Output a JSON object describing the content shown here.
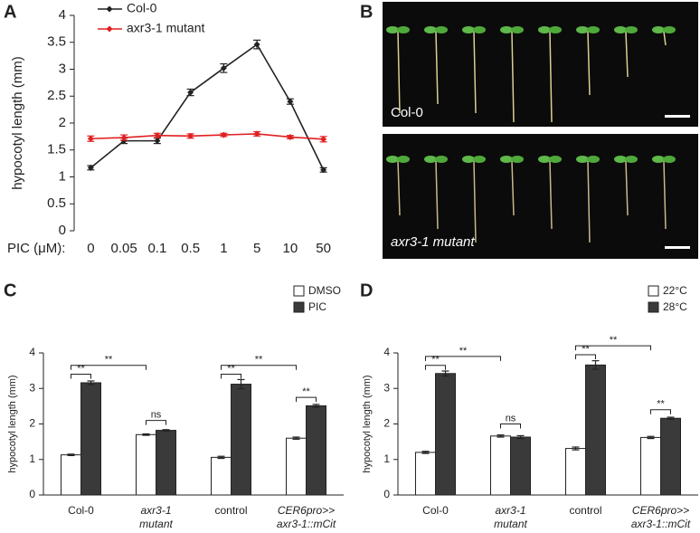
{
  "chart_data": [
    {
      "type": "line",
      "panel": "A",
      "y_label": "hypocotyl length (mm)",
      "x_label": "PIC (μM):",
      "categories": [
        "0",
        "0.05",
        "0.1",
        "0.5",
        "1",
        "5",
        "10",
        "50"
      ],
      "ylim": [
        0,
        4
      ],
      "yticks": [
        0,
        0.5,
        1,
        1.5,
        2,
        2.5,
        3,
        3.5,
        4
      ],
      "series": [
        {
          "name": "Col-0",
          "color": "#222222",
          "values": [
            1.17,
            1.67,
            1.67,
            2.57,
            3.02,
            3.46,
            2.4,
            1.13
          ],
          "errors": [
            0.04,
            0.05,
            0.05,
            0.06,
            0.08,
            0.08,
            0.05,
            0.04
          ]
        },
        {
          "name": "axr3-1 mutant",
          "color": "#e02020",
          "values": [
            1.71,
            1.73,
            1.77,
            1.76,
            1.78,
            1.8,
            1.74,
            1.7
          ],
          "errors": [
            0.05,
            0.05,
            0.04,
            0.04,
            0.03,
            0.04,
            0.03,
            0.05
          ]
        }
      ]
    },
    {
      "type": "bar",
      "panel": "C",
      "y_label": "hypocotyl length (mm)",
      "categories": [
        [
          "Col-0"
        ],
        [
          "axr3-1",
          "mutant"
        ],
        [
          "control"
        ],
        [
          "CER6pro>>",
          "axr3-1::mCit"
        ]
      ],
      "ylim": [
        0,
        4
      ],
      "yticks": [
        0,
        1,
        2,
        3,
        4
      ],
      "series": [
        {
          "name": "DMSO",
          "color": "#ffffff",
          "values": [
            1.13,
            1.7,
            1.06,
            1.6
          ],
          "errors": [
            0.02,
            0.02,
            0.03,
            0.03
          ]
        },
        {
          "name": "PIC",
          "color": "#3a3a3a",
          "values": [
            3.16,
            1.82,
            3.12,
            2.51
          ],
          "errors": [
            0.05,
            0.02,
            0.13,
            0.04
          ]
        }
      ],
      "annotations": [
        "**",
        "**",
        "ns",
        "**",
        "**",
        "**"
      ]
    },
    {
      "type": "bar",
      "panel": "D",
      "y_label": "hypocotyl length (mm)",
      "categories": [
        [
          "Col-0"
        ],
        [
          "axr3-1",
          "mutant"
        ],
        [
          "control"
        ],
        [
          "CER6pro>>",
          "axr3-1::mCit"
        ]
      ],
      "ylim": [
        0,
        4
      ],
      "yticks": [
        0,
        1,
        2,
        3,
        4
      ],
      "series": [
        {
          "name": "22°C",
          "color": "#ffffff",
          "values": [
            1.2,
            1.66,
            1.31,
            1.62
          ],
          "errors": [
            0.03,
            0.03,
            0.04,
            0.03
          ]
        },
        {
          "name": "28°C",
          "color": "#3a3a3a",
          "values": [
            3.42,
            1.63,
            3.66,
            2.16
          ],
          "errors": [
            0.07,
            0.04,
            0.12,
            0.03
          ]
        }
      ],
      "annotations": [
        "**",
        "**",
        "ns",
        "**",
        "**",
        "**"
      ]
    }
  ],
  "photo": {
    "panel": "B",
    "captions": [
      "Col-0",
      "axr3-1 mutant"
    ]
  }
}
